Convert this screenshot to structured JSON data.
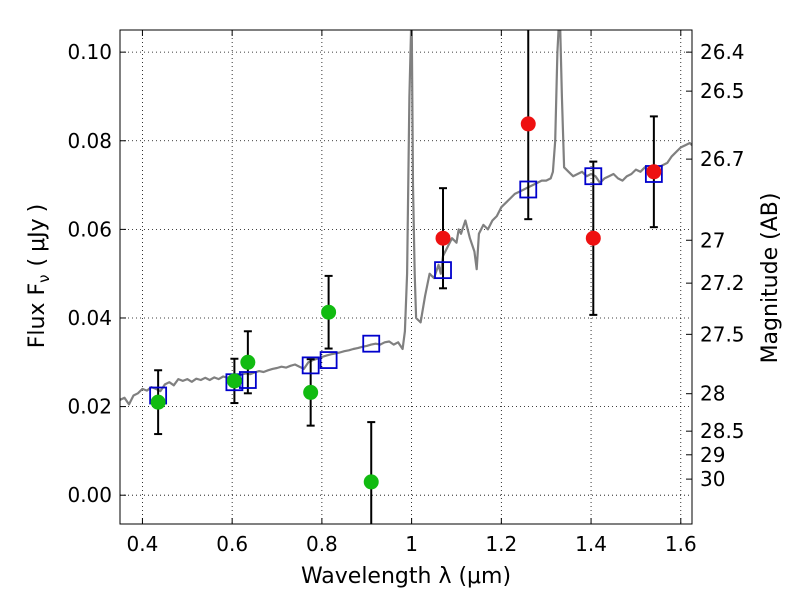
{
  "chart_data": {
    "type": "scatter",
    "xlabel": "Wavelength  λ (μm)",
    "ylabel": "Flux  F",
    "ylabel_sub": "ν",
    "ylabel_paren_open": "(",
    "ylabel_unit": "μJy",
    "ylabel_paren_close": ")",
    "y2label": "Magnitude (AB)",
    "xlim": [
      0.35,
      1.625
    ],
    "ylim": [
      -0.0065,
      0.105
    ],
    "x_ticks": [
      {
        "v": 0.4,
        "label": "0.4"
      },
      {
        "v": 0.6,
        "label": "0.6"
      },
      {
        "v": 0.8,
        "label": "0.8"
      },
      {
        "v": 1.0,
        "label": "1"
      },
      {
        "v": 1.2,
        "label": "1.2"
      },
      {
        "v": 1.4,
        "label": "1.4"
      },
      {
        "v": 1.6,
        "label": "1.6"
      }
    ],
    "y_ticks": [
      {
        "v": 0.0,
        "label": "0.00"
      },
      {
        "v": 0.02,
        "label": "0.02"
      },
      {
        "v": 0.04,
        "label": "0.04"
      },
      {
        "v": 0.06,
        "label": "0.06"
      },
      {
        "v": 0.08,
        "label": "0.08"
      },
      {
        "v": 0.1,
        "label": "0.10"
      }
    ],
    "y2_ticks": [
      {
        "label": "26.4",
        "mag": 26.4
      },
      {
        "label": "26.5",
        "mag": 26.5
      },
      {
        "label": "26.7",
        "mag": 26.7
      },
      {
        "label": "27",
        "mag": 27.0
      },
      {
        "label": "27.2",
        "mag": 27.2
      },
      {
        "label": "27.5",
        "mag": 27.5
      },
      {
        "label": "28",
        "mag": 28.0
      },
      {
        "label": "28.5",
        "mag": 28.5
      },
      {
        "label": "29",
        "mag": 29.0
      },
      {
        "label": "30",
        "mag": 30.0
      }
    ],
    "grid": true,
    "colors": {
      "spectrum": "#808080",
      "model": "#0000cc",
      "green": "#11bb11",
      "red": "#ee1111",
      "errorbar": "#000000"
    },
    "series": [
      {
        "kind": "spectrum",
        "points": [
          [
            0.35,
            0.0215
          ],
          [
            0.36,
            0.022
          ],
          [
            0.37,
            0.0205
          ],
          [
            0.38,
            0.0225
          ],
          [
            0.39,
            0.023
          ],
          [
            0.4,
            0.024
          ],
          [
            0.41,
            0.0236
          ],
          [
            0.42,
            0.0244
          ],
          [
            0.43,
            0.024
          ],
          [
            0.44,
            0.0235
          ],
          [
            0.45,
            0.025
          ],
          [
            0.46,
            0.0255
          ],
          [
            0.47,
            0.0248
          ],
          [
            0.48,
            0.0262
          ],
          [
            0.49,
            0.0258
          ],
          [
            0.5,
            0.0262
          ],
          [
            0.51,
            0.0256
          ],
          [
            0.52,
            0.0263
          ],
          [
            0.53,
            0.026
          ],
          [
            0.54,
            0.0265
          ],
          [
            0.55,
            0.026
          ],
          [
            0.56,
            0.0266
          ],
          [
            0.57,
            0.0262
          ],
          [
            0.58,
            0.0268
          ],
          [
            0.59,
            0.0265
          ],
          [
            0.6,
            0.027
          ],
          [
            0.61,
            0.0268
          ],
          [
            0.62,
            0.0272
          ],
          [
            0.63,
            0.0275
          ],
          [
            0.64,
            0.0273
          ],
          [
            0.65,
            0.0277
          ],
          [
            0.66,
            0.028
          ],
          [
            0.67,
            0.0278
          ],
          [
            0.68,
            0.0282
          ],
          [
            0.69,
            0.0285
          ],
          [
            0.7,
            0.0287
          ],
          [
            0.71,
            0.029
          ],
          [
            0.72,
            0.0288
          ],
          [
            0.73,
            0.0292
          ],
          [
            0.74,
            0.0295
          ],
          [
            0.75,
            0.029
          ],
          [
            0.76,
            0.0285
          ],
          [
            0.77,
            0.03
          ],
          [
            0.78,
            0.0305
          ],
          [
            0.79,
            0.0308
          ],
          [
            0.8,
            0.0312
          ],
          [
            0.81,
            0.0315
          ],
          [
            0.82,
            0.0318
          ],
          [
            0.83,
            0.032
          ],
          [
            0.84,
            0.0322
          ],
          [
            0.85,
            0.0325
          ],
          [
            0.86,
            0.0327
          ],
          [
            0.87,
            0.033
          ],
          [
            0.88,
            0.0332
          ],
          [
            0.89,
            0.0335
          ],
          [
            0.9,
            0.0337
          ],
          [
            0.91,
            0.034
          ],
          [
            0.92,
            0.0342
          ],
          [
            0.93,
            0.034
          ],
          [
            0.94,
            0.0345
          ],
          [
            0.95,
            0.0347
          ],
          [
            0.96,
            0.034
          ],
          [
            0.97,
            0.0345
          ],
          [
            0.98,
            0.033
          ],
          [
            0.985,
            0.037
          ],
          [
            0.99,
            0.05
          ],
          [
            0.995,
            0.09
          ],
          [
            1.0,
            0.11
          ],
          [
            1.003,
            0.07
          ],
          [
            1.007,
            0.05
          ],
          [
            1.01,
            0.04
          ],
          [
            1.02,
            0.039
          ],
          [
            1.03,
            0.045
          ],
          [
            1.04,
            0.05
          ],
          [
            1.05,
            0.049
          ],
          [
            1.06,
            0.052
          ],
          [
            1.065,
            0.05
          ],
          [
            1.07,
            0.054
          ],
          [
            1.08,
            0.056
          ],
          [
            1.09,
            0.058
          ],
          [
            1.1,
            0.057
          ],
          [
            1.105,
            0.06
          ],
          [
            1.11,
            0.059
          ],
          [
            1.12,
            0.062
          ],
          [
            1.13,
            0.058
          ],
          [
            1.14,
            0.055
          ],
          [
            1.145,
            0.051
          ],
          [
            1.15,
            0.059
          ],
          [
            1.16,
            0.061
          ],
          [
            1.17,
            0.06
          ],
          [
            1.18,
            0.062
          ],
          [
            1.19,
            0.063
          ],
          [
            1.2,
            0.065
          ],
          [
            1.21,
            0.066
          ],
          [
            1.22,
            0.067
          ],
          [
            1.23,
            0.068
          ],
          [
            1.24,
            0.0685
          ],
          [
            1.25,
            0.069
          ],
          [
            1.26,
            0.0695
          ],
          [
            1.27,
            0.07
          ],
          [
            1.28,
            0.0705
          ],
          [
            1.29,
            0.071
          ],
          [
            1.3,
            0.071
          ],
          [
            1.31,
            0.0715
          ],
          [
            1.315,
            0.073
          ],
          [
            1.32,
            0.08
          ],
          [
            1.325,
            0.1
          ],
          [
            1.33,
            0.11
          ],
          [
            1.335,
            0.09
          ],
          [
            1.34,
            0.074
          ],
          [
            1.35,
            0.073
          ],
          [
            1.36,
            0.072
          ],
          [
            1.37,
            0.0725
          ],
          [
            1.38,
            0.073
          ],
          [
            1.39,
            0.072
          ],
          [
            1.4,
            0.0725
          ],
          [
            1.41,
            0.072
          ],
          [
            1.42,
            0.0705
          ],
          [
            1.43,
            0.0715
          ],
          [
            1.44,
            0.072
          ],
          [
            1.45,
            0.0725
          ],
          [
            1.46,
            0.0715
          ],
          [
            1.47,
            0.071
          ],
          [
            1.48,
            0.072
          ],
          [
            1.49,
            0.0725
          ],
          [
            1.5,
            0.0735
          ],
          [
            1.51,
            0.073
          ],
          [
            1.52,
            0.074
          ],
          [
            1.53,
            0.0735
          ],
          [
            1.54,
            0.0738
          ],
          [
            1.55,
            0.074
          ],
          [
            1.56,
            0.0745
          ],
          [
            1.57,
            0.075
          ],
          [
            1.58,
            0.0765
          ],
          [
            1.59,
            0.0775
          ],
          [
            1.6,
            0.0785
          ],
          [
            1.61,
            0.079
          ],
          [
            1.62,
            0.0795
          ],
          [
            1.625,
            0.079
          ]
        ]
      },
      {
        "kind": "model_squares",
        "points": [
          [
            0.435,
            0.0225
          ],
          [
            0.605,
            0.0255
          ],
          [
            0.635,
            0.026
          ],
          [
            0.775,
            0.0293
          ],
          [
            0.815,
            0.0305
          ],
          [
            0.91,
            0.0342
          ],
          [
            1.07,
            0.0508
          ],
          [
            1.26,
            0.069
          ],
          [
            1.405,
            0.072
          ],
          [
            1.54,
            0.0725
          ]
        ]
      },
      {
        "kind": "green_points",
        "points": [
          {
            "x": 0.435,
            "y": 0.021,
            "err": 0.0072
          },
          {
            "x": 0.605,
            "y": 0.0258,
            "err": 0.005
          },
          {
            "x": 0.635,
            "y": 0.03,
            "err": 0.007
          },
          {
            "x": 0.775,
            "y": 0.0232,
            "err": 0.0075
          },
          {
            "x": 0.815,
            "y": 0.0413,
            "err": 0.0082
          },
          {
            "x": 0.91,
            "y": 0.003,
            "err": 0.0135
          }
        ]
      },
      {
        "kind": "red_points",
        "points": [
          {
            "x": 1.07,
            "y": 0.058,
            "err": 0.0113
          },
          {
            "x": 1.26,
            "y": 0.0838,
            "err": 0.0215
          },
          {
            "x": 1.405,
            "y": 0.058,
            "err": 0.0173
          },
          {
            "x": 1.54,
            "y": 0.073,
            "err": 0.0125
          }
        ]
      }
    ]
  }
}
